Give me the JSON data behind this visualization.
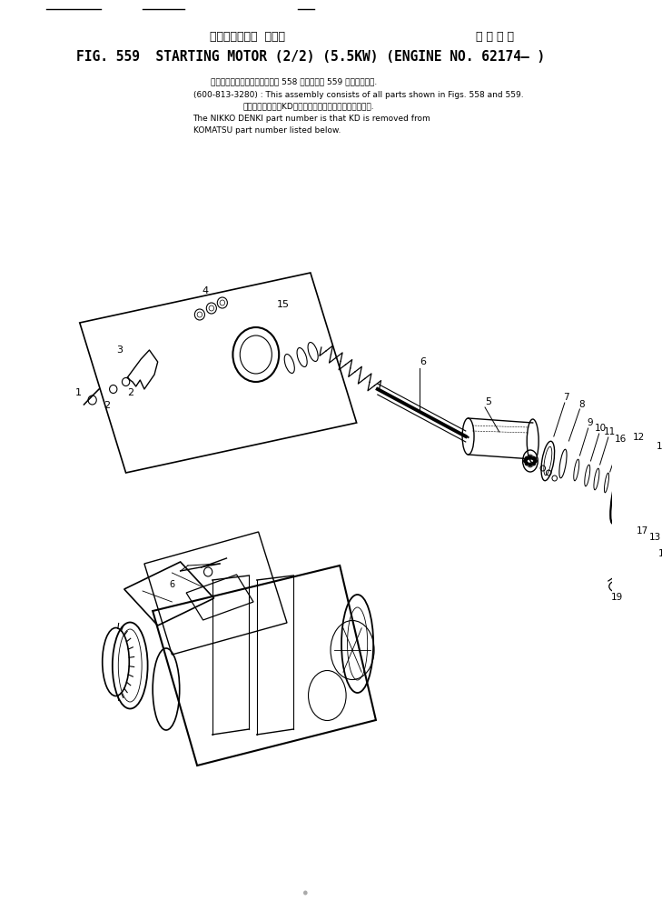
{
  "title_japanese": "スターティング  モータ",
  "title_japanese2": "適 用 号 機",
  "title_english": "FIG. 559  STARTING MOTOR (2/2) (5.5KW) (ENGINE NO. 62174– )",
  "note_line1_jp": "このアセンブリの構成部品は第 558 図および第 559 図を含みます.",
  "note_line1_en": "(600-813-3280) : This assembly consists of all parts shown in Figs. 558 and 559.",
  "note_line2_jp": "品番のメーカ記号KDを除いたものが日卐電機の品番です.",
  "note_line2_en": "The NIKKO DENKI part number is that KD is removed from",
  "note_line3_en": "KOMATSU part number listed below.",
  "bg_color": "#ffffff",
  "line_color": "#000000",
  "text_color": "#000000",
  "fig_width": 7.29,
  "fig_height": 10.13,
  "dpi": 100
}
